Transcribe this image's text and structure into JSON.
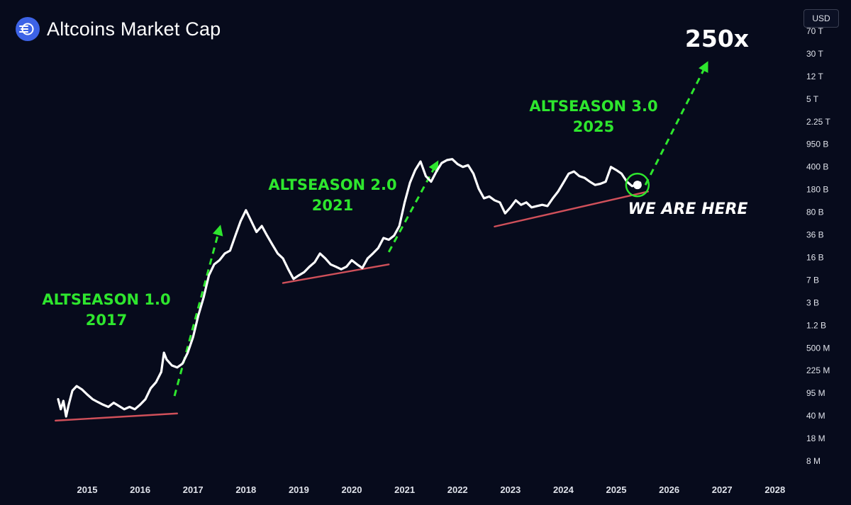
{
  "header": {
    "title": "Altcoins Market Cap",
    "logo_icon": "altcoin-logo-icon",
    "currency_label": "USD"
  },
  "colors": {
    "background": "#070b1c",
    "price_line": "#ffffff",
    "annotation_green": "#2ee62e",
    "support_line": "#d0505a",
    "axis_text": "#dfe2ea"
  },
  "chart_data": {
    "type": "line",
    "title": "Altcoins Market Cap",
    "xlabel": "",
    "ylabel": "",
    "y_scale": "log",
    "currency": "USD",
    "x_ticks": [
      "2015",
      "2016",
      "2017",
      "2018",
      "2019",
      "2020",
      "2021",
      "2022",
      "2023",
      "2024",
      "2025",
      "2026",
      "2027",
      "2028"
    ],
    "y_ticks": [
      "70 T",
      "30 T",
      "12 T",
      "5 T",
      "2.25 T",
      "950 B",
      "400 B",
      "180 B",
      "80 B",
      "36 B",
      "16 B",
      "7 B",
      "3 B",
      "1.2 B",
      "500 M",
      "225 M",
      "95 M",
      "40 M",
      "18 M",
      "8 M"
    ],
    "series": [
      {
        "values_note": "approximate market cap (USD) read off the log axis",
        "points": [
          {
            "x": 2014.45,
            "y": 80000000.0
          },
          {
            "x": 2014.5,
            "y": 55000000.0
          },
          {
            "x": 2014.55,
            "y": 75000000.0
          },
          {
            "x": 2014.6,
            "y": 42000000.0
          },
          {
            "x": 2014.65,
            "y": 65000000.0
          },
          {
            "x": 2014.72,
            "y": 110000000.0
          },
          {
            "x": 2014.8,
            "y": 130000000.0
          },
          {
            "x": 2014.9,
            "y": 115000000.0
          },
          {
            "x": 2015.0,
            "y": 95000000.0
          },
          {
            "x": 2015.1,
            "y": 80000000.0
          },
          {
            "x": 2015.2,
            "y": 72000000.0
          },
          {
            "x": 2015.3,
            "y": 65000000.0
          },
          {
            "x": 2015.4,
            "y": 60000000.0
          },
          {
            "x": 2015.5,
            "y": 70000000.0
          },
          {
            "x": 2015.6,
            "y": 62000000.0
          },
          {
            "x": 2015.7,
            "y": 55000000.0
          },
          {
            "x": 2015.8,
            "y": 60000000.0
          },
          {
            "x": 2015.9,
            "y": 55000000.0
          },
          {
            "x": 2016.0,
            "y": 65000000.0
          },
          {
            "x": 2016.1,
            "y": 80000000.0
          },
          {
            "x": 2016.2,
            "y": 120000000.0
          },
          {
            "x": 2016.3,
            "y": 150000000.0
          },
          {
            "x": 2016.4,
            "y": 220000000.0
          },
          {
            "x": 2016.45,
            "y": 450000000.0
          },
          {
            "x": 2016.5,
            "y": 350000000.0
          },
          {
            "x": 2016.6,
            "y": 280000000.0
          },
          {
            "x": 2016.7,
            "y": 260000000.0
          },
          {
            "x": 2016.8,
            "y": 300000000.0
          },
          {
            "x": 2016.9,
            "y": 450000000.0
          },
          {
            "x": 2017.0,
            "y": 800000000.0
          },
          {
            "x": 2017.1,
            "y": 1800000000.0
          },
          {
            "x": 2017.2,
            "y": 3500000000.0
          },
          {
            "x": 2017.3,
            "y": 8000000000.0
          },
          {
            "x": 2017.4,
            "y": 12000000000.0
          },
          {
            "x": 2017.5,
            "y": 14000000000.0
          },
          {
            "x": 2017.6,
            "y": 18000000000.0
          },
          {
            "x": 2017.7,
            "y": 20000000000.0
          },
          {
            "x": 2017.8,
            "y": 35000000000.0
          },
          {
            "x": 2017.9,
            "y": 60000000000.0
          },
          {
            "x": 2018.0,
            "y": 90000000000.0
          },
          {
            "x": 2018.1,
            "y": 60000000000.0
          },
          {
            "x": 2018.2,
            "y": 40000000000.0
          },
          {
            "x": 2018.3,
            "y": 50000000000.0
          },
          {
            "x": 2018.4,
            "y": 35000000000.0
          },
          {
            "x": 2018.5,
            "y": 25000000000.0
          },
          {
            "x": 2018.6,
            "y": 18000000000.0
          },
          {
            "x": 2018.7,
            "y": 15000000000.0
          },
          {
            "x": 2018.8,
            "y": 10000000000.0
          },
          {
            "x": 2018.9,
            "y": 7000000000.0
          },
          {
            "x": 2019.0,
            "y": 8000000000.0
          },
          {
            "x": 2019.1,
            "y": 9000000000.0
          },
          {
            "x": 2019.2,
            "y": 11000000000.0
          },
          {
            "x": 2019.3,
            "y": 13000000000.0
          },
          {
            "x": 2019.4,
            "y": 18000000000.0
          },
          {
            "x": 2019.5,
            "y": 15000000000.0
          },
          {
            "x": 2019.6,
            "y": 12000000000.0
          },
          {
            "x": 2019.7,
            "y": 11000000000.0
          },
          {
            "x": 2019.8,
            "y": 10000000000.0
          },
          {
            "x": 2019.9,
            "y": 11000000000.0
          },
          {
            "x": 2020.0,
            "y": 14000000000.0
          },
          {
            "x": 2020.1,
            "y": 12000000000.0
          },
          {
            "x": 2020.2,
            "y": 10500000000.0
          },
          {
            "x": 2020.3,
            "y": 15000000000.0
          },
          {
            "x": 2020.4,
            "y": 18000000000.0
          },
          {
            "x": 2020.5,
            "y": 22000000000.0
          },
          {
            "x": 2020.6,
            "y": 32000000000.0
          },
          {
            "x": 2020.7,
            "y": 30000000000.0
          },
          {
            "x": 2020.8,
            "y": 35000000000.0
          },
          {
            "x": 2020.9,
            "y": 50000000000.0
          },
          {
            "x": 2021.0,
            "y": 120000000000.0
          },
          {
            "x": 2021.1,
            "y": 250000000000.0
          },
          {
            "x": 2021.2,
            "y": 400000000000.0
          },
          {
            "x": 2021.3,
            "y": 550000000000.0
          },
          {
            "x": 2021.4,
            "y": 320000000000.0
          },
          {
            "x": 2021.5,
            "y": 260000000000.0
          },
          {
            "x": 2021.6,
            "y": 380000000000.0
          },
          {
            "x": 2021.7,
            "y": 520000000000.0
          },
          {
            "x": 2021.8,
            "y": 580000000000.0
          },
          {
            "x": 2021.9,
            "y": 600000000000.0
          },
          {
            "x": 2022.0,
            "y": 500000000000.0
          },
          {
            "x": 2022.1,
            "y": 450000000000.0
          },
          {
            "x": 2022.2,
            "y": 480000000000.0
          },
          {
            "x": 2022.3,
            "y": 350000000000.0
          },
          {
            "x": 2022.4,
            "y": 200000000000.0
          },
          {
            "x": 2022.5,
            "y": 140000000000.0
          },
          {
            "x": 2022.6,
            "y": 150000000000.0
          },
          {
            "x": 2022.7,
            "y": 130000000000.0
          },
          {
            "x": 2022.8,
            "y": 120000000000.0
          },
          {
            "x": 2022.9,
            "y": 80000000000.0
          },
          {
            "x": 2023.0,
            "y": 100000000000.0
          },
          {
            "x": 2023.1,
            "y": 130000000000.0
          },
          {
            "x": 2023.2,
            "y": 110000000000.0
          },
          {
            "x": 2023.3,
            "y": 120000000000.0
          },
          {
            "x": 2023.4,
            "y": 100000000000.0
          },
          {
            "x": 2023.5,
            "y": 105000000000.0
          },
          {
            "x": 2023.6,
            "y": 110000000000.0
          },
          {
            "x": 2023.7,
            "y": 105000000000.0
          },
          {
            "x": 2023.8,
            "y": 140000000000.0
          },
          {
            "x": 2023.9,
            "y": 180000000000.0
          },
          {
            "x": 2024.0,
            "y": 250000000000.0
          },
          {
            "x": 2024.1,
            "y": 350000000000.0
          },
          {
            "x": 2024.2,
            "y": 380000000000.0
          },
          {
            "x": 2024.3,
            "y": 320000000000.0
          },
          {
            "x": 2024.4,
            "y": 300000000000.0
          },
          {
            "x": 2024.5,
            "y": 260000000000.0
          },
          {
            "x": 2024.6,
            "y": 230000000000.0
          },
          {
            "x": 2024.7,
            "y": 240000000000.0
          },
          {
            "x": 2024.8,
            "y": 260000000000.0
          },
          {
            "x": 2024.9,
            "y": 450000000000.0
          },
          {
            "x": 2025.0,
            "y": 400000000000.0
          },
          {
            "x": 2025.1,
            "y": 350000000000.0
          },
          {
            "x": 2025.2,
            "y": 260000000000.0
          },
          {
            "x": 2025.3,
            "y": 220000000000.0
          },
          {
            "x": 2025.4,
            "y": 240000000000.0
          },
          {
            "x": 2025.45,
            "y": 250000000000.0
          }
        ]
      }
    ],
    "annotations": [
      {
        "label": "ALTSEASON 1.0",
        "sub": "2017"
      },
      {
        "label": "ALTSEASON 2.0",
        "sub": "2021"
      },
      {
        "label": "ALTSEASON 3.0",
        "sub": "2025"
      },
      {
        "label": "WE ARE HERE"
      },
      {
        "label": "250x"
      }
    ],
    "support_lines": [
      {
        "from": {
          "x": 2014.4,
          "y": 36000000.0
        },
        "to": {
          "x": 2016.7,
          "y": 47000000.0
        }
      },
      {
        "from": {
          "x": 2018.7,
          "y": 6000000000.0
        },
        "to": {
          "x": 2020.7,
          "y": 12000000000.0
        }
      },
      {
        "from": {
          "x": 2022.7,
          "y": 49000000000.0
        },
        "to": {
          "x": 2025.6,
          "y": 180000000000.0
        }
      }
    ],
    "projection_arrows": [
      {
        "from": {
          "x": 2016.65,
          "y": 90000000.0
        },
        "to": {
          "x": 2017.5,
          "y": 45000000000.0
        }
      },
      {
        "from": {
          "x": 2020.7,
          "y": 19000000000.0
        },
        "to": {
          "x": 2021.6,
          "y": 500000000000.0
        }
      },
      {
        "from": {
          "x": 2025.55,
          "y": 230000000000.0
        },
        "to": {
          "x": 2026.7,
          "y": 20000000000000.0
        }
      }
    ],
    "current_marker": {
      "x": 2025.4,
      "y": 230000000000.0
    }
  }
}
